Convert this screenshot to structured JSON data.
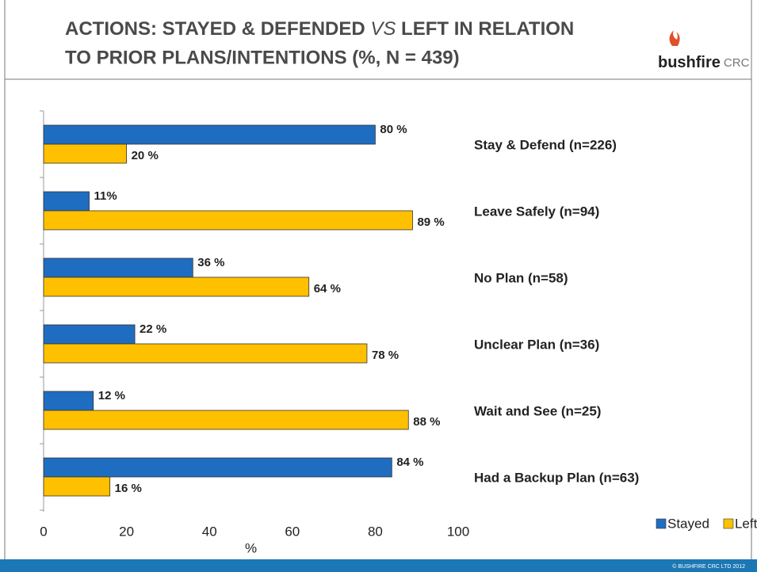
{
  "header": {
    "title_parts": [
      "ACTIONS: STAYED & DEFENDED ",
      "VS",
      " LEFT IN RELATION",
      "TO PRIOR PLANS/INTENTIONS (%, N = 439)"
    ],
    "logo": [
      "bushfire",
      "CRC"
    ]
  },
  "footer": "© BUSHFIRE CRC LTD 2012",
  "chart_data": {
    "type": "bar",
    "orientation": "horizontal",
    "categories": [
      "Stay & Defend (n=226)",
      "Leave Safely (n=94)",
      "No Plan (n=58)",
      "Unclear Plan (n=36)",
      "Wait and See (n=25)",
      "Had a Backup Plan (n=63)"
    ],
    "series": [
      {
        "name": "Stayed",
        "color": "#1f6dc1",
        "values": [
          80,
          11,
          36,
          22,
          12,
          84
        ],
        "value_labels": [
          "80 %",
          "11%",
          "36 %",
          "22 %",
          "12 %",
          "84 %"
        ]
      },
      {
        "name": "Left",
        "color": "#ffc000",
        "values": [
          20,
          89,
          64,
          78,
          88,
          16
        ],
        "value_labels": [
          "20 %",
          "89 %",
          "64 %",
          "78 %",
          "88 %",
          "16 %"
        ]
      }
    ],
    "xlabel": "%",
    "xlim": [
      0,
      100
    ],
    "xticks": [
      0,
      20,
      40,
      60,
      80,
      100
    ],
    "grid": false,
    "legend": "bottom-right"
  }
}
